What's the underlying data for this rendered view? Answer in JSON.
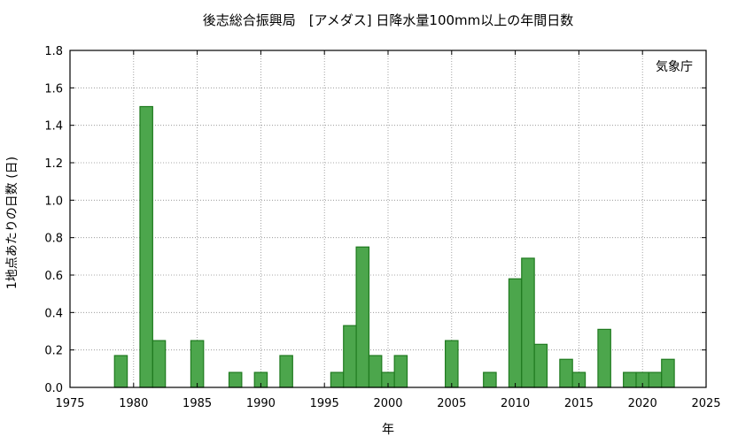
{
  "chart_data": {
    "type": "bar",
    "title": "後志総合振興局　[アメダス] 日降水量100mm以上の年間日数",
    "xlabel": "年",
    "ylabel": "1地点あたりの日数 (日)",
    "annotation": "気象庁",
    "xlim": [
      1975,
      2025
    ],
    "ylim": [
      0,
      1.8
    ],
    "xticks": [
      1975,
      1980,
      1985,
      1990,
      1995,
      2000,
      2005,
      2010,
      2015,
      2020,
      2025
    ],
    "yticks": [
      "0.0",
      "0.2",
      "0.4",
      "0.6",
      "0.8",
      "1.0",
      "1.2",
      "1.4",
      "1.6",
      "1.8"
    ],
    "grid": true,
    "bar_color": "#4ca64c",
    "bar_edge_color": "#1f7a1f",
    "x": [
      1979,
      1981,
      1982,
      1985,
      1988,
      1990,
      1992,
      1996,
      1997,
      1998,
      1999,
      2000,
      2001,
      2005,
      2008,
      2010,
      2011,
      2012,
      2014,
      2015,
      2017,
      2019,
      2020,
      2021,
      2022
    ],
    "values": [
      0.17,
      1.5,
      0.25,
      0.25,
      0.08,
      0.08,
      0.17,
      0.08,
      0.33,
      0.75,
      0.17,
      0.08,
      0.17,
      0.25,
      0.08,
      0.58,
      0.69,
      0.23,
      0.15,
      0.08,
      0.31,
      0.08,
      0.08,
      0.08,
      0.15
    ]
  }
}
